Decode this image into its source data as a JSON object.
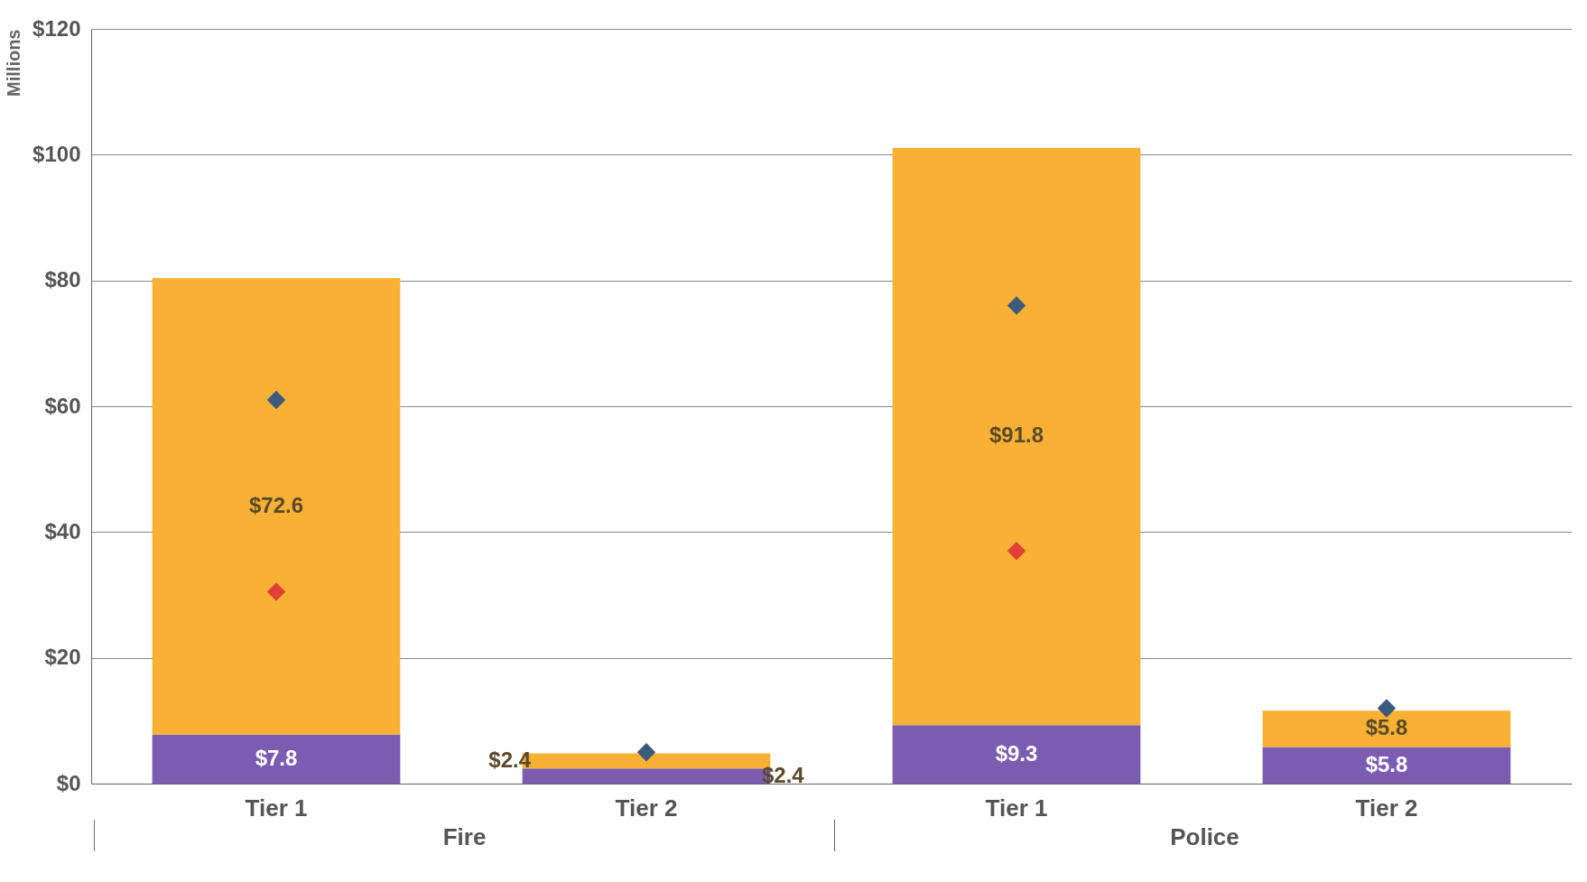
{
  "chart_data": {
    "type": "bar",
    "stacked": true,
    "ylabel": "Millions",
    "categories": [
      "Tier 1",
      "Tier 2",
      "Tier 1",
      "Tier 2"
    ],
    "series": [
      {
        "color": "#7b5cb0",
        "values": [
          7.8,
          2.4,
          9.3,
          5.8
        ],
        "value_labels": [
          "$7.8",
          "$2.4",
          "$9.3",
          "$5.8"
        ]
      },
      {
        "color": "#f8b134",
        "values": [
          72.6,
          2.4,
          91.8,
          5.8
        ],
        "value_labels": [
          "$72.6",
          "$2.4",
          "$91.8",
          "$5.8"
        ]
      },
      {
        "type": "scatter",
        "color": "#3c5a7c",
        "marker": "diamond",
        "values": [
          61,
          5,
          76,
          12
        ]
      },
      {
        "type": "scatter",
        "color": "#e0403a",
        "marker": "diamond",
        "values": [
          30.5,
          null,
          37,
          null
        ]
      }
    ],
    "ylim": [
      0,
      120
    ],
    "yticks": [
      {
        "value": 0,
        "label": "$0"
      },
      {
        "value": 20,
        "label": "$20"
      },
      {
        "value": 40,
        "label": "$40"
      },
      {
        "value": 60,
        "label": "$60"
      },
      {
        "value": 80,
        "label": "$80"
      },
      {
        "value": 100,
        "label": "$100"
      },
      {
        "value": 120,
        "label": "$120"
      }
    ],
    "grid": "y",
    "annotations": [
      "Fire",
      "Police"
    ]
  }
}
